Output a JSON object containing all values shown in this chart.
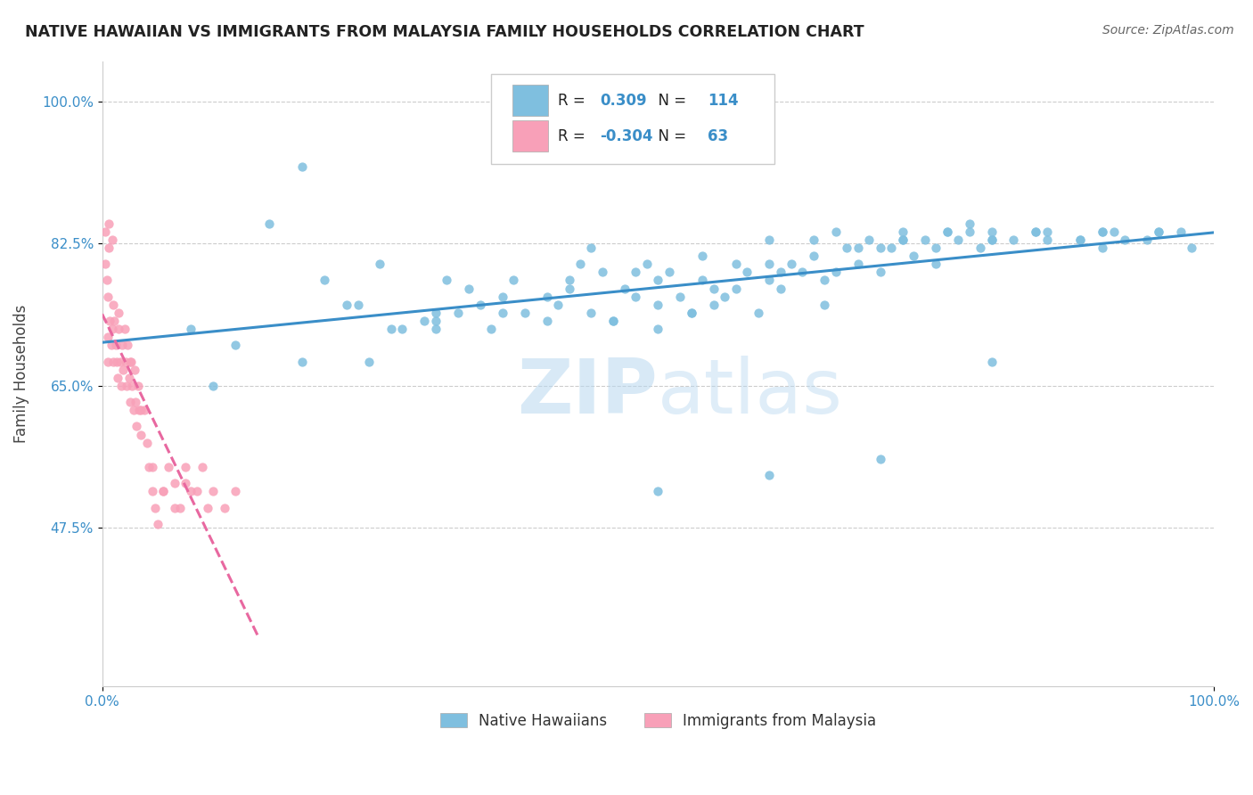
{
  "title": "NATIVE HAWAIIAN VS IMMIGRANTS FROM MALAYSIA FAMILY HOUSEHOLDS CORRELATION CHART",
  "source": "Source: ZipAtlas.com",
  "ylabel": "Family Households",
  "y_ticks": [
    0.475,
    0.65,
    0.825,
    1.0
  ],
  "y_tick_labels": [
    "47.5%",
    "65.0%",
    "82.5%",
    "100.0%"
  ],
  "x_lim": [
    0.0,
    1.0
  ],
  "y_lim": [
    0.28,
    1.05
  ],
  "blue_color": "#7fbfdf",
  "pink_color": "#f8a0b8",
  "blue_line_color": "#3a8ec8",
  "pink_line_color": "#e868a0",
  "R_blue": 0.309,
  "N_blue": 114,
  "R_pink": -0.304,
  "N_pink": 63,
  "legend_label_blue": "Native Hawaiians",
  "legend_label_pink": "Immigrants from Malaysia",
  "title_color": "#222222",
  "source_color": "#666666",
  "axis_label_color": "#3a8ec8",
  "watermark_color": "#b8d8f0",
  "blue_scatter_x": [
    0.08,
    0.15,
    0.2,
    0.22,
    0.25,
    0.27,
    0.3,
    0.31,
    0.32,
    0.33,
    0.34,
    0.35,
    0.36,
    0.38,
    0.4,
    0.41,
    0.42,
    0.43,
    0.44,
    0.45,
    0.46,
    0.47,
    0.48,
    0.49,
    0.5,
    0.51,
    0.52,
    0.53,
    0.54,
    0.55,
    0.56,
    0.57,
    0.58,
    0.59,
    0.6,
    0.61,
    0.62,
    0.63,
    0.64,
    0.65,
    0.66,
    0.67,
    0.68,
    0.69,
    0.7,
    0.71,
    0.72,
    0.73,
    0.74,
    0.75,
    0.76,
    0.77,
    0.78,
    0.79,
    0.8,
    0.82,
    0.85,
    0.88,
    0.9,
    0.92,
    0.95,
    0.98,
    0.1,
    0.12,
    0.18,
    0.23,
    0.26,
    0.29,
    0.37,
    0.5,
    0.53,
    0.57,
    0.61,
    0.64,
    0.68,
    0.72,
    0.76,
    0.8,
    0.84,
    0.88,
    0.91,
    0.94,
    0.97,
    0.18,
    0.24,
    0.3,
    0.36,
    0.42,
    0.48,
    0.54,
    0.6,
    0.66,
    0.72,
    0.78,
    0.84,
    0.9,
    0.3,
    0.4,
    0.5,
    0.6,
    0.7,
    0.8,
    0.9,
    0.5,
    0.6,
    0.7,
    0.8,
    0.46,
    0.55,
    0.65,
    0.75,
    0.85,
    0.95,
    0.44
  ],
  "blue_scatter_y": [
    0.72,
    0.85,
    0.78,
    0.75,
    0.8,
    0.72,
    0.73,
    0.78,
    0.74,
    0.77,
    0.75,
    0.72,
    0.76,
    0.74,
    0.73,
    0.75,
    0.78,
    0.8,
    0.74,
    0.79,
    0.73,
    0.77,
    0.76,
    0.8,
    0.75,
    0.79,
    0.76,
    0.74,
    0.78,
    0.77,
    0.76,
    0.8,
    0.79,
    0.74,
    0.78,
    0.77,
    0.8,
    0.79,
    0.83,
    0.75,
    0.79,
    0.82,
    0.8,
    0.83,
    0.79,
    0.82,
    0.84,
    0.81,
    0.83,
    0.82,
    0.84,
    0.83,
    0.85,
    0.82,
    0.84,
    0.83,
    0.84,
    0.83,
    0.84,
    0.83,
    0.84,
    0.82,
    0.65,
    0.7,
    0.68,
    0.75,
    0.72,
    0.73,
    0.78,
    0.72,
    0.74,
    0.77,
    0.79,
    0.81,
    0.82,
    0.83,
    0.84,
    0.83,
    0.84,
    0.83,
    0.84,
    0.83,
    0.84,
    0.92,
    0.68,
    0.72,
    0.74,
    0.77,
    0.79,
    0.81,
    0.83,
    0.84,
    0.83,
    0.84,
    0.84,
    0.84,
    0.74,
    0.76,
    0.78,
    0.8,
    0.82,
    0.83,
    0.82,
    0.52,
    0.54,
    0.56,
    0.68,
    0.73,
    0.75,
    0.78,
    0.8,
    0.83,
    0.84,
    0.82
  ],
  "pink_scatter_x": [
    0.005,
    0.005,
    0.005,
    0.007,
    0.008,
    0.009,
    0.01,
    0.01,
    0.011,
    0.012,
    0.013,
    0.014,
    0.015,
    0.016,
    0.017,
    0.018,
    0.019,
    0.02,
    0.021,
    0.022,
    0.023,
    0.024,
    0.025,
    0.026,
    0.027,
    0.028,
    0.029,
    0.03,
    0.031,
    0.032,
    0.033,
    0.035,
    0.038,
    0.04,
    0.042,
    0.045,
    0.048,
    0.05,
    0.055,
    0.06,
    0.065,
    0.07,
    0.075,
    0.08,
    0.09,
    0.1,
    0.11,
    0.12,
    0.003,
    0.004,
    0.006,
    0.015,
    0.025,
    0.035,
    0.045,
    0.055,
    0.065,
    0.075,
    0.085,
    0.095,
    0.003,
    0.006,
    0.009
  ],
  "pink_scatter_y": [
    0.76,
    0.71,
    0.68,
    0.73,
    0.7,
    0.72,
    0.75,
    0.68,
    0.73,
    0.7,
    0.68,
    0.66,
    0.72,
    0.68,
    0.65,
    0.7,
    0.67,
    0.72,
    0.68,
    0.65,
    0.7,
    0.66,
    0.63,
    0.68,
    0.65,
    0.62,
    0.67,
    0.63,
    0.6,
    0.65,
    0.62,
    0.59,
    0.62,
    0.58,
    0.55,
    0.52,
    0.5,
    0.48,
    0.52,
    0.55,
    0.53,
    0.5,
    0.55,
    0.52,
    0.55,
    0.52,
    0.5,
    0.52,
    0.8,
    0.78,
    0.82,
    0.74,
    0.68,
    0.62,
    0.55,
    0.52,
    0.5,
    0.53,
    0.52,
    0.5,
    0.84,
    0.85,
    0.83
  ]
}
